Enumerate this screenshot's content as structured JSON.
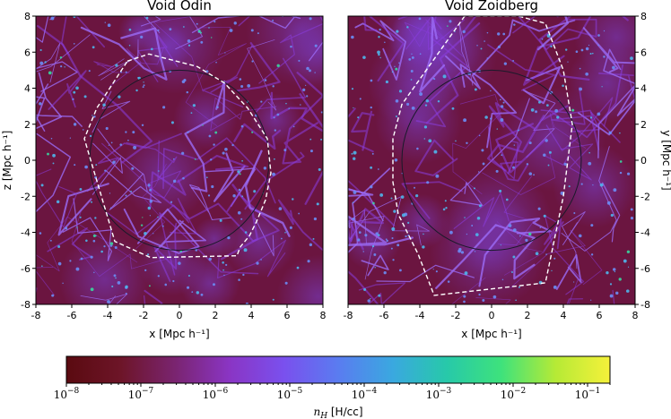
{
  "chart_data": [
    {
      "type": "heatmap",
      "title": "Void Odin",
      "xlabel": "x [Mpc h⁻¹]",
      "ylabel": "z [Mpc h⁻¹]",
      "xlim": [
        -8,
        8
      ],
      "ylim": [
        -8,
        8
      ],
      "xticks": [
        "-8",
        "-6",
        "-4",
        "-2",
        "0",
        "2",
        "4",
        "6",
        "8"
      ],
      "yticks": [
        "-8",
        "-6",
        "-4",
        "-2",
        "0",
        "2",
        "4",
        "6",
        "8"
      ],
      "circle": {
        "center": [
          0,
          0
        ],
        "radius": 5
      },
      "boundary": [
        [
          -2.9,
          5.5
        ],
        [
          -1.7,
          5.9
        ],
        [
          1.0,
          5.2
        ],
        [
          2.5,
          4.3
        ],
        [
          3.8,
          2.9
        ],
        [
          4.9,
          1.2
        ],
        [
          5.1,
          -0.7
        ],
        [
          4.8,
          -2.2
        ],
        [
          4.3,
          -3.4
        ],
        [
          3.9,
          -4.2
        ],
        [
          3.4,
          -4.8
        ],
        [
          3.2,
          -5.3
        ],
        [
          -1.6,
          -5.4
        ],
        [
          -3.6,
          -4.5
        ],
        [
          -5.3,
          1.2
        ],
        [
          -4.6,
          2.9
        ]
      ]
    },
    {
      "type": "heatmap",
      "title": "Void Zoidberg",
      "xlabel": "x [Mpc h⁻¹]",
      "ylabel": "y [Mpc h⁻¹]",
      "xlim": [
        -8,
        8
      ],
      "ylim": [
        -8,
        8
      ],
      "xticks": [
        "-8",
        "-6",
        "-4",
        "-2",
        "0",
        "2",
        "4",
        "6",
        "8"
      ],
      "yticks": [
        "-8",
        "-6",
        "-4",
        "-2",
        "0",
        "2",
        "4",
        "6",
        "8"
      ],
      "circle": {
        "center": [
          0,
          0
        ],
        "radius": 5
      },
      "boundary": [
        [
          -1.5,
          8.0
        ],
        [
          -5.0,
          3.1
        ],
        [
          -5.5,
          1.2
        ],
        [
          -5.5,
          -1.2
        ],
        [
          -5.2,
          -3.0
        ],
        [
          -4.1,
          -5.2
        ],
        [
          -3.2,
          -7.5
        ],
        [
          3.0,
          -6.8
        ],
        [
          4.0,
          -2.0
        ],
        [
          4.5,
          2.0
        ],
        [
          4.0,
          5.0
        ],
        [
          3.0,
          7.6
        ],
        [
          1.5,
          8.0
        ]
      ]
    },
    {
      "type": "colorbar",
      "label": "n_H [H/cc]",
      "label_symbol": "n",
      "label_subscript": "H",
      "label_unit": " [H/cc]",
      "scale": "log",
      "range": [
        1e-08,
        0.2
      ],
      "ticks": [
        {
          "value": 1e-08,
          "exp": "−8"
        },
        {
          "value": 1e-07,
          "exp": "−7"
        },
        {
          "value": 1e-06,
          "exp": "−6"
        },
        {
          "value": 1e-05,
          "exp": "−5"
        },
        {
          "value": 0.0001,
          "exp": "−4"
        },
        {
          "value": 0.001,
          "exp": "−3"
        },
        {
          "value": 0.01,
          "exp": "−2"
        },
        {
          "value": 0.1,
          "exp": "−1"
        }
      ],
      "colors": [
        "#5a0a10",
        "#6d1528",
        "#7a2470",
        "#8a35c4",
        "#7a50ee",
        "#5a7cf0",
        "#3aa8e0",
        "#27c9a9",
        "#3ee27c",
        "#b6ea36",
        "#f5f13a"
      ]
    }
  ],
  "colors": {
    "background": "#6b1540",
    "boundary": "#ffffff",
    "circle": "#1a1a2a"
  }
}
